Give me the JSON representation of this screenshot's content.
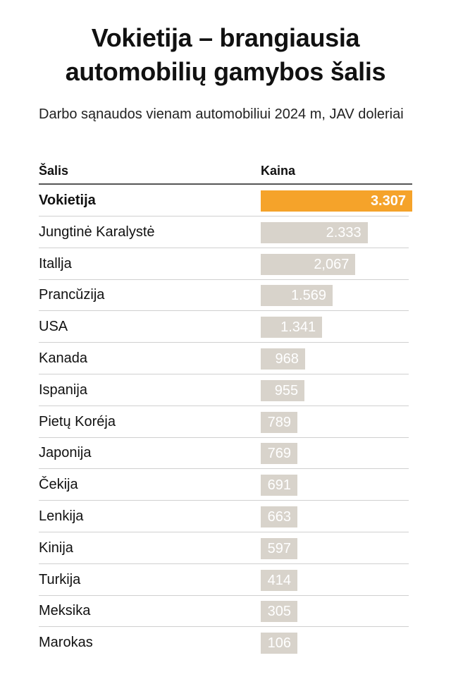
{
  "title": "Vokietija – brangiausia automobilių gamybos šalis",
  "subtitle": "Darbo sąnaudos vienam automobiliui 2024 m, JAV doleriai",
  "columns": {
    "country": "Šalis",
    "price": "Kaina"
  },
  "colors": {
    "highlight": "#f5a32a",
    "bar": "#d8d3cb"
  },
  "chart_data": {
    "type": "bar",
    "orientation": "horizontal",
    "title": "Vokietija – brangiausia automobilių gamybos šalis",
    "subtitle": "Darbo sąnaudos vienam automobiliui 2024 m, JAV doleriai",
    "xlabel": "",
    "ylabel": "",
    "xlim": [
      0,
      3307
    ],
    "highlighted_category": "Vokietija",
    "categories": [
      "Vokietija",
      "Jungtinė Karalystė",
      "Itallja",
      "Prancŭzija",
      "USA",
      "Kanada",
      "Ispanija",
      "Pietų Koréja",
      "Japonija",
      "Čekija",
      "Lenkija",
      "Kinija",
      "Turkija",
      "Meksika",
      "Marokas"
    ],
    "values": [
      3307,
      2333,
      2067,
      1569,
      1341,
      968,
      955,
      789,
      769,
      691,
      663,
      597,
      414,
      305,
      106
    ],
    "value_labels": [
      "3.307",
      "2.333",
      "2,067",
      "1.569",
      "1.341",
      "968",
      "955",
      "789",
      "769",
      "691",
      "663",
      "597",
      "414",
      "305",
      "106"
    ]
  }
}
